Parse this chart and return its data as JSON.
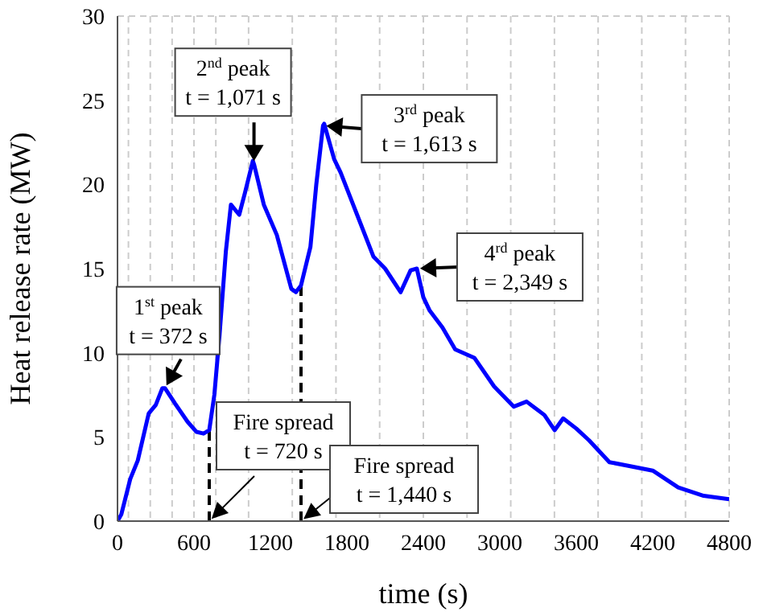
{
  "chart_data": {
    "type": "line",
    "xlabel": "time (s)",
    "ylabel": "Heat release rate (MW)",
    "x": [
      0,
      30,
      100,
      159,
      245,
      300,
      352,
      372,
      450,
      550,
      620,
      675,
      720,
      760,
      800,
      850,
      890,
      955,
      1000,
      1062,
      1071,
      1148,
      1250,
      1364,
      1400,
      1440,
      1514,
      1560,
      1613,
      1622,
      1700,
      1751,
      1880,
      2009,
      2100,
      2222,
      2300,
      2349,
      2400,
      2450,
      2550,
      2650,
      2800,
      2955,
      3110,
      3210,
      3350,
      3430,
      3497,
      3600,
      3700,
      3860,
      4000,
      4200,
      4400,
      4600,
      4800
    ],
    "series": [
      {
        "color": "#0000ff",
        "values": [
          0,
          0.4,
          2.5,
          3.6,
          6.4,
          6.9,
          7.9,
          7.9,
          7.0,
          5.9,
          5.3,
          5.2,
          5.4,
          7.5,
          11,
          16,
          18.8,
          18.2,
          19.5,
          21.4,
          21.2,
          18.8,
          17,
          13.8,
          13.6,
          14,
          16.3,
          20,
          23.5,
          23.6,
          21.5,
          20.7,
          18.2,
          15.7,
          15,
          13.6,
          14.9,
          15,
          13.3,
          12.5,
          11.5,
          10.2,
          9.7,
          8,
          6.8,
          7.1,
          6.3,
          5.4,
          6.1,
          5.5,
          4.8,
          3.5,
          3.3,
          3.0,
          2.0,
          1.5,
          1.3
        ]
      }
    ],
    "xlim": [
      0,
      4800
    ],
    "xticks": [
      0,
      600,
      1200,
      1800,
      2400,
      3000,
      3600,
      4200,
      4800
    ],
    "ylim": [
      0,
      30
    ],
    "yticks": [
      0,
      5,
      10,
      15,
      20,
      25,
      30
    ],
    "grid": true,
    "marker": "none",
    "line_style": "solid",
    "ref_lines": [
      {
        "axis": "x",
        "value": 720,
        "line_style": "dashed",
        "color": "#000000"
      },
      {
        "axis": "x",
        "value": 1440,
        "line_style": "dashed",
        "color": "#000000"
      }
    ],
    "annotations": [
      {
        "text": "1$^{st}$ peak\nt = 372 s",
        "x": 372,
        "y": 7.9
      },
      {
        "text": "2$^{nd}$ peak\nt = 1,071 s",
        "x": 1071,
        "y": 21.2
      },
      {
        "text": "3$^{rd}$ peak\nt = 1,613 s",
        "x": 1613,
        "y": 23.5
      },
      {
        "text": "4$^{rd}$ peak\nt = 2,349 s",
        "x": 2349,
        "y": 15
      },
      {
        "text": "Fire spread\nt = 720 s",
        "x": 720,
        "y": 0
      },
      {
        "text": "Fire spread\nt = 1,440 s",
        "x": 1440,
        "y": 0
      }
    ]
  }
}
